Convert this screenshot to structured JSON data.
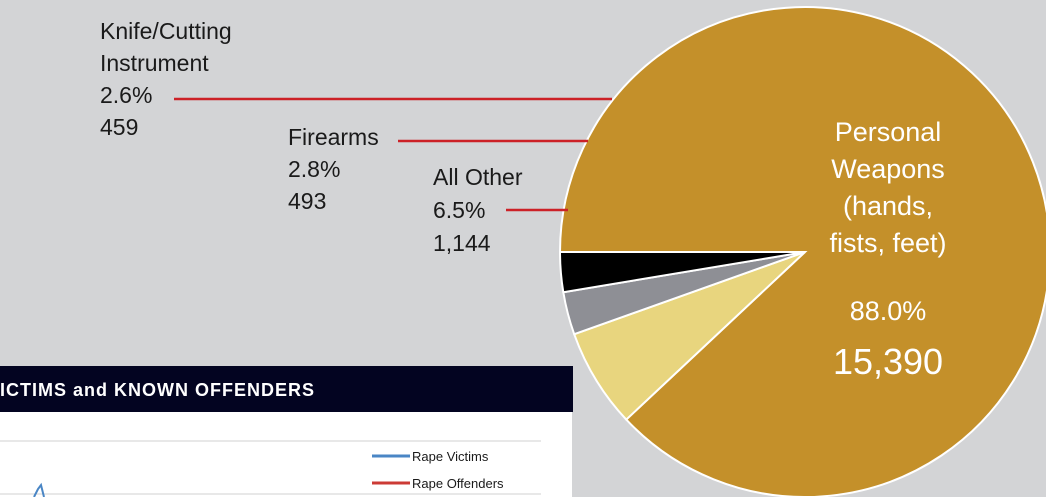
{
  "colors": {
    "panel_background": "#d3d4d6",
    "personal_weapons": "#c4902a",
    "all_other": "#e8d57e",
    "firearms": "#8e8f95",
    "knife": "#000000",
    "leader_line": "#cc2127",
    "banner": "#030421",
    "rape_victims": "#4a86c5",
    "rape_offenders": "#cc3b35"
  },
  "chart_data": [
    {
      "type": "pie",
      "title": "",
      "slices": [
        {
          "label": "Personal Weapons (hands, fists, feet)",
          "label_lines": [
            "Personal",
            "Weapons",
            "(hands,",
            "fists, feet)"
          ],
          "percent_text": "88.0%",
          "count_text": "15,390",
          "value": 15390,
          "percent": 88.0,
          "color": "#c4902a"
        },
        {
          "label": "All Other",
          "label_lines": [
            "All Other"
          ],
          "percent_text": "6.5%",
          "count_text": "1,144",
          "value": 1144,
          "percent": 6.5,
          "color": "#e8d57e"
        },
        {
          "label": "Firearms",
          "label_lines": [
            "Firearms"
          ],
          "percent_text": "2.8%",
          "count_text": "493",
          "value": 493,
          "percent": 2.8,
          "color": "#8e8f95"
        },
        {
          "label": "Knife/Cutting Instrument",
          "label_lines": [
            "Knife/Cutting",
            "Instrument"
          ],
          "percent_text": "2.6%",
          "count_text": "459",
          "value": 459,
          "percent": 2.6,
          "color": "#000000"
        }
      ]
    },
    {
      "type": "line",
      "title": "ICTIMS and KNOWN OFFENDERS",
      "series": [
        {
          "name": "Rape Victims",
          "color": "#4a86c5"
        },
        {
          "name": "Rape Offenders",
          "color": "#cc3b35"
        }
      ]
    }
  ]
}
